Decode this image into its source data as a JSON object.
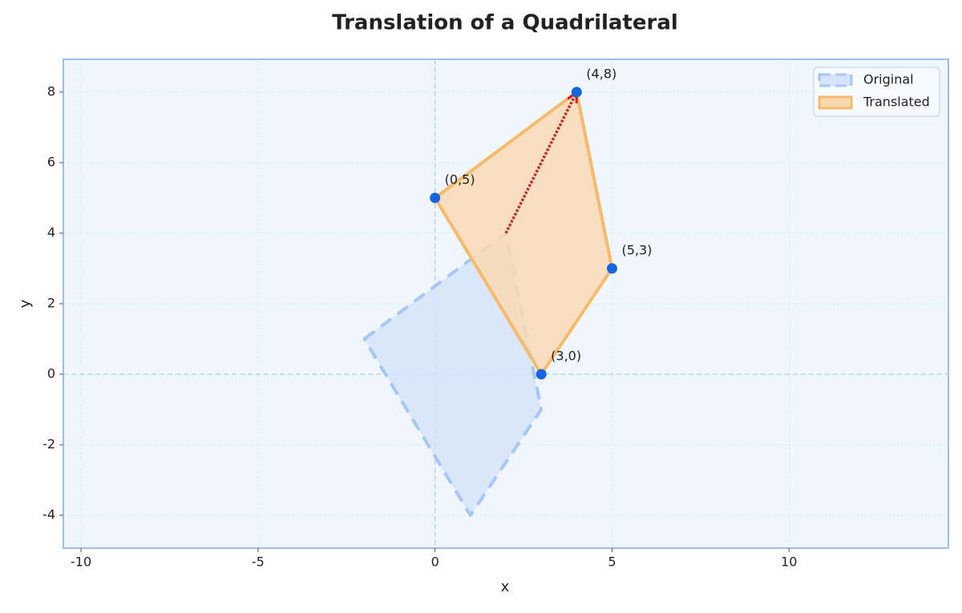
{
  "chart_data": {
    "type": "polygon",
    "title": "Translation of a Quadrilateral",
    "x_label": "x",
    "y_label": "y",
    "xlim": [
      -10.5,
      14.5
    ],
    "ylim": [
      -4.93,
      8.93
    ],
    "xticks": [
      -10,
      -5,
      0,
      5,
      10
    ],
    "yticks": [
      -4,
      -2,
      0,
      2,
      4,
      6,
      8
    ],
    "grid": true,
    "legend": "upper right",
    "series": [
      {
        "name": "Original",
        "color": "#a8c6f5",
        "fill": "#d4e3fa",
        "dashed": true,
        "x": [
          -2,
          2,
          3,
          1
        ],
        "values": [
          1,
          4,
          -1,
          -4
        ]
      },
      {
        "name": "Translated",
        "color": "#f7b96a",
        "fill": "#fbd9b0",
        "dashed": false,
        "marker_color": "#1565e0",
        "x": [
          0,
          4,
          5,
          3
        ],
        "values": [
          5,
          8,
          3,
          0
        ],
        "value_labels": [
          "(0,5)",
          "(4,8)",
          "(5,3)",
          "(3,0)"
        ]
      }
    ],
    "arrow": {
      "color": "#c62828",
      "x": [
        2,
        4
      ],
      "values": [
        4,
        8
      ]
    }
  }
}
